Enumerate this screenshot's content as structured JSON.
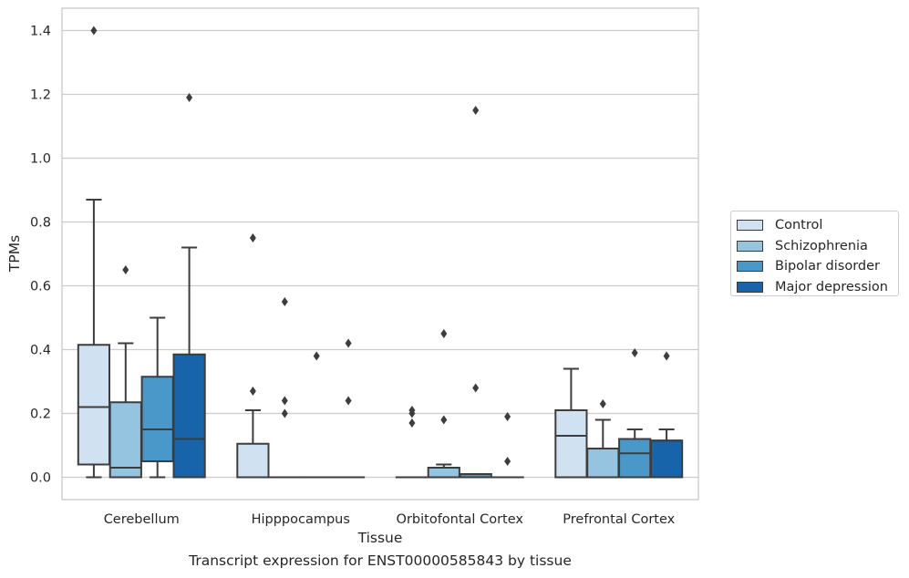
{
  "caption": "Transcript expression for ENST00000585843 by tissue",
  "legend": {
    "items": [
      {
        "label": "Control",
        "color": "#d0e1f2"
      },
      {
        "label": "Schizophrenia",
        "color": "#94c4df"
      },
      {
        "label": "Bipolar disorder",
        "color": "#4a98c9"
      },
      {
        "label": "Major depression",
        "color": "#1764ab"
      }
    ]
  },
  "chart_data": {
    "type": "box",
    "xlabel": "Tissue",
    "ylabel": "TPMs",
    "categories": [
      "Cerebellum",
      "Hipppocampus",
      "Orbitofontal Cortex",
      "Prefrontal Cortex"
    ],
    "ylim": [
      -0.07,
      1.47
    ],
    "yticks": [
      0.0,
      0.2,
      0.4,
      0.6,
      0.8,
      1.0,
      1.2,
      1.4
    ],
    "ytick_labels": [
      "0.0",
      "0.2",
      "0.4",
      "0.6",
      "0.8",
      "1.0",
      "1.2",
      "1.4"
    ],
    "grid": true,
    "legend_position": "outside-right",
    "series": [
      {
        "name": "Control",
        "color": "#d0e1f2",
        "boxes": [
          {
            "whislo": 0.0,
            "q1": 0.04,
            "med": 0.22,
            "q3": 0.415,
            "whishi": 0.87,
            "fliers": [
              1.4
            ]
          },
          {
            "whislo": 0.0,
            "q1": 0.0,
            "med": 0.0,
            "q3": 0.105,
            "whishi": 0.21,
            "fliers": [
              0.27,
              0.75
            ]
          },
          {
            "whislo": 0.0,
            "q1": 0.0,
            "med": 0.0,
            "q3": 0.0,
            "whishi": 0.0,
            "fliers": [
              0.17,
              0.2,
              0.21
            ]
          },
          {
            "whislo": 0.0,
            "q1": 0.0,
            "med": 0.13,
            "q3": 0.21,
            "whishi": 0.34,
            "fliers": []
          }
        ]
      },
      {
        "name": "Schizophrenia",
        "color": "#94c4df",
        "boxes": [
          {
            "whislo": 0.0,
            "q1": 0.0,
            "med": 0.03,
            "q3": 0.235,
            "whishi": 0.42,
            "fliers": [
              0.65
            ]
          },
          {
            "whislo": 0.0,
            "q1": 0.0,
            "med": 0.0,
            "q3": 0.0,
            "whishi": 0.0,
            "fliers": [
              0.2,
              0.24,
              0.55
            ]
          },
          {
            "whislo": 0.0,
            "q1": 0.0,
            "med": 0.0,
            "q3": 0.03,
            "whishi": 0.04,
            "fliers": [
              0.18,
              0.45
            ]
          },
          {
            "whislo": 0.0,
            "q1": 0.0,
            "med": 0.09,
            "q3": 0.09,
            "whishi": 0.18,
            "fliers": [
              0.23
            ]
          }
        ]
      },
      {
        "name": "Bipolar disorder",
        "color": "#4a98c9",
        "boxes": [
          {
            "whislo": 0.0,
            "q1": 0.05,
            "med": 0.15,
            "q3": 0.315,
            "whishi": 0.5,
            "fliers": []
          },
          {
            "whislo": 0.0,
            "q1": 0.0,
            "med": 0.0,
            "q3": 0.0,
            "whishi": 0.0,
            "fliers": [
              0.38
            ]
          },
          {
            "whislo": 0.0,
            "q1": 0.0,
            "med": 0.0,
            "q3": 0.01,
            "whishi": 0.01,
            "fliers": [
              0.28,
              1.15
            ]
          },
          {
            "whislo": 0.0,
            "q1": 0.0,
            "med": 0.075,
            "q3": 0.12,
            "whishi": 0.15,
            "fliers": [
              0.39
            ]
          }
        ]
      },
      {
        "name": "Major depression",
        "color": "#1764ab",
        "boxes": [
          {
            "whislo": 0.0,
            "q1": 0.0,
            "med": 0.12,
            "q3": 0.385,
            "whishi": 0.72,
            "fliers": [
              1.19
            ]
          },
          {
            "whislo": 0.0,
            "q1": 0.0,
            "med": 0.0,
            "q3": 0.0,
            "whishi": 0.0,
            "fliers": [
              0.24,
              0.42
            ]
          },
          {
            "whislo": 0.0,
            "q1": 0.0,
            "med": 0.0,
            "q3": 0.0,
            "whishi": 0.0,
            "fliers": [
              0.05,
              0.19
            ]
          },
          {
            "whislo": 0.0,
            "q1": 0.0,
            "med": 0.115,
            "q3": 0.115,
            "whishi": 0.15,
            "fliers": [
              0.38
            ]
          }
        ]
      }
    ]
  }
}
